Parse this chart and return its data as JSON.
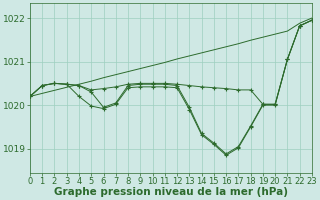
{
  "title": "Graphe pression niveau de la mer (hPa)",
  "bg_color": "#cfe8e4",
  "grid_color": "#9ecfbf",
  "line_color": "#2d6b2d",
  "xlim": [
    0,
    23
  ],
  "ylim": [
    1018.45,
    1022.35
  ],
  "yticks": [
    1019,
    1020,
    1021,
    1022
  ],
  "xticks": [
    0,
    1,
    2,
    3,
    4,
    5,
    6,
    7,
    8,
    9,
    10,
    11,
    12,
    13,
    14,
    15,
    16,
    17,
    18,
    19,
    20,
    21,
    22,
    23
  ],
  "fan_line": [
    1020.2,
    1020.27,
    1020.34,
    1020.41,
    1020.48,
    1020.55,
    1020.63,
    1020.7,
    1020.77,
    1020.84,
    1020.91,
    1020.98,
    1021.06,
    1021.13,
    1021.2,
    1021.27,
    1021.34,
    1021.41,
    1021.49,
    1021.56,
    1021.63,
    1021.7,
    1021.88,
    1022.0
  ],
  "line_main": [
    1020.2,
    1020.45,
    1020.5,
    1020.48,
    1020.45,
    1020.3,
    1019.95,
    1020.05,
    1020.45,
    1020.48,
    1020.48,
    1020.48,
    1020.45,
    1019.95,
    1019.35,
    1019.13,
    1018.88,
    1019.05,
    1019.52,
    1020.02,
    1020.02,
    1021.05,
    1021.82,
    1021.95
  ],
  "line_upper": [
    1020.2,
    1020.45,
    1020.5,
    1020.48,
    1020.45,
    1020.35,
    1020.38,
    1020.42,
    1020.48,
    1020.5,
    1020.5,
    1020.5,
    1020.48,
    1020.45,
    1020.42,
    1020.4,
    1020.38,
    1020.35,
    1020.35,
    1020.02,
    1020.02,
    1021.05,
    1021.82,
    1021.95
  ],
  "line_lower": [
    1020.2,
    1020.45,
    1020.5,
    1020.48,
    1020.2,
    1019.98,
    1019.92,
    1020.02,
    1020.4,
    1020.42,
    1020.42,
    1020.42,
    1020.4,
    1019.9,
    1019.32,
    1019.1,
    1018.85,
    1019.02,
    1019.5,
    1020.0,
    1020.0,
    1021.05,
    1021.82,
    1021.95
  ],
  "figw": 3.2,
  "figh": 2.0,
  "dpi": 100,
  "tick_fontsize": 6.0,
  "title_fontsize": 7.5
}
